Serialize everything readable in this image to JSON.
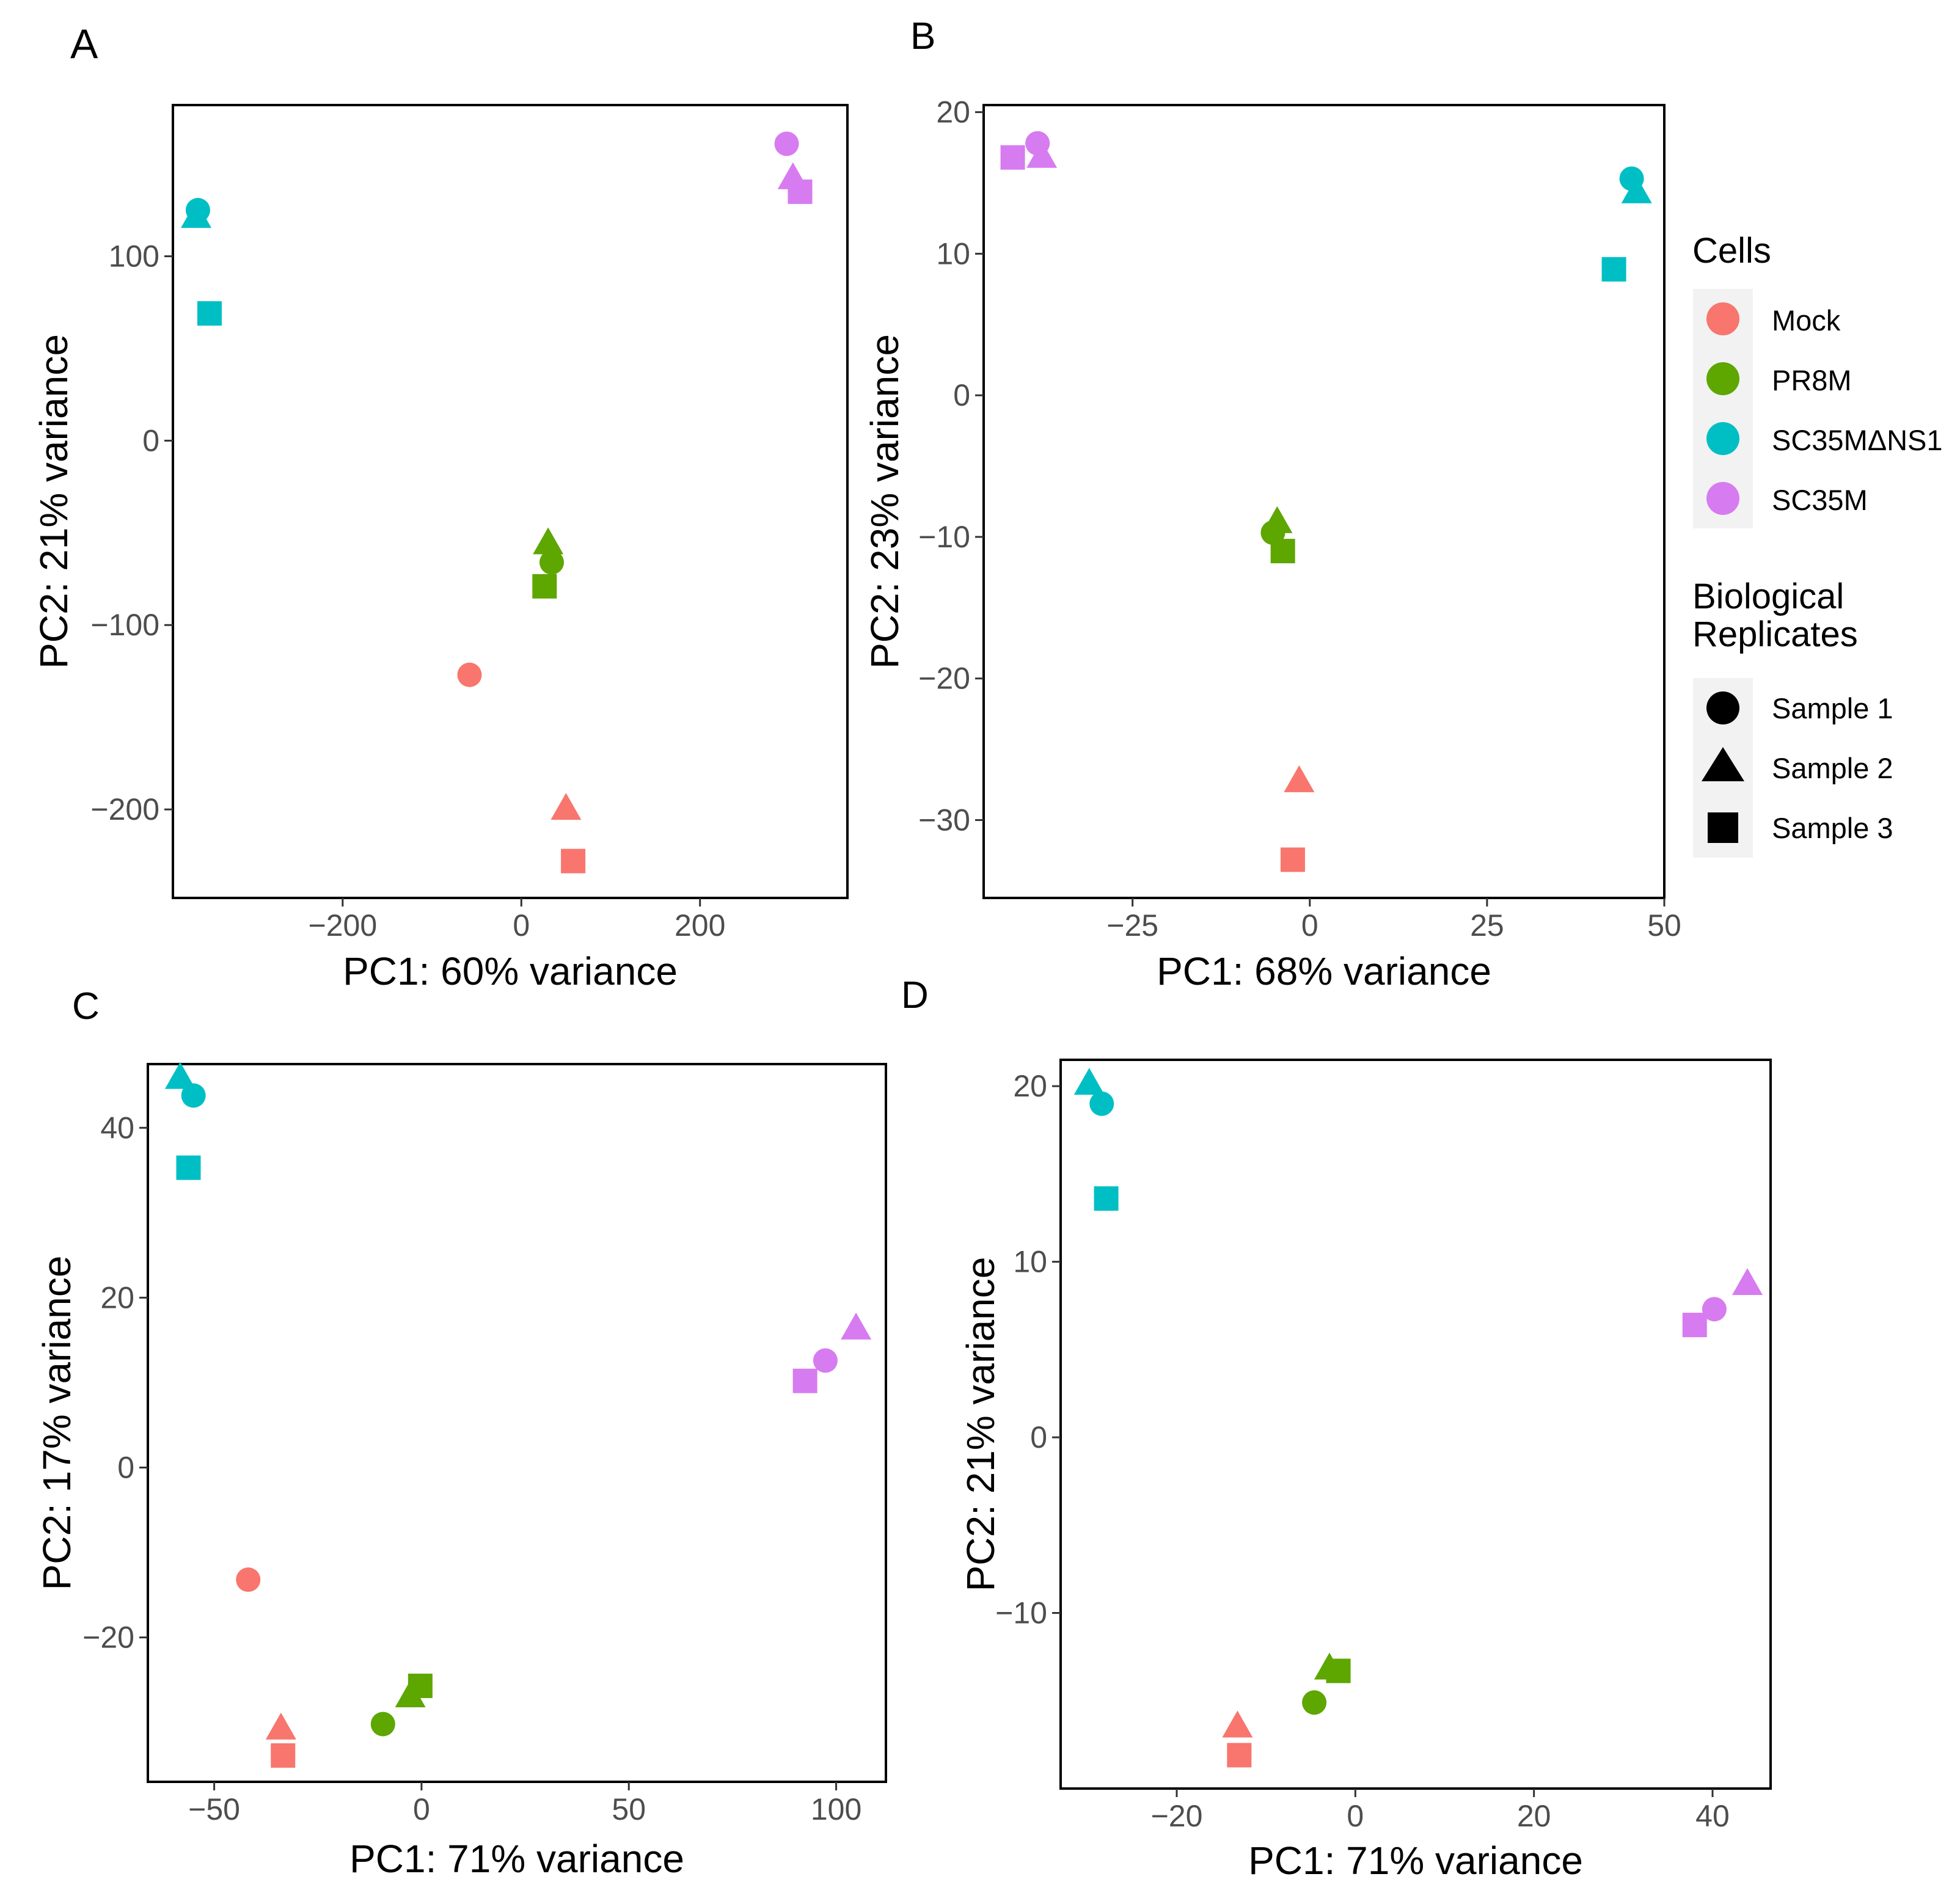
{
  "colors": {
    "Mock": "#F8766D",
    "PR8M": "#5EA600",
    "SC35MdNS1": "#00BFC4",
    "SC35M": "#D77BF0",
    "frame": "#000000",
    "tick_text": "#4D4D4D",
    "legend_key_bg": "#F2F2F2"
  },
  "legend": {
    "cells_title": "Cells",
    "cells": [
      {
        "key": "Mock",
        "label": "Mock"
      },
      {
        "key": "PR8M",
        "label": "PR8M"
      },
      {
        "key": "SC35MdNS1",
        "label": "SC35MΔNS1"
      },
      {
        "key": "SC35M",
        "label": "SC35M"
      }
    ],
    "rep_title_line1": "Biological",
    "rep_title_line2": "Replicates",
    "reps": [
      {
        "shape": "circle",
        "label": "Sample 1"
      },
      {
        "shape": "triangle",
        "label": "Sample 2"
      },
      {
        "shape": "square",
        "label": "Sample 3"
      }
    ]
  },
  "chart_data": [
    {
      "panel": "A",
      "type": "scatter",
      "xlabel": "PC1: 60% variance",
      "ylabel": "PC2: 21% variance",
      "xlim": [
        -390,
        365
      ],
      "ylim": [
        -248,
        182
      ],
      "xticks": [
        -200,
        0,
        200
      ],
      "yticks": [
        -200,
        -100,
        0,
        100
      ],
      "points": [
        {
          "cell": "SC35MdNS1",
          "rep": 1,
          "x": -362,
          "y": 125
        },
        {
          "cell": "SC35MdNS1",
          "rep": 2,
          "x": -364,
          "y": 121
        },
        {
          "cell": "SC35MdNS1",
          "rep": 3,
          "x": -349,
          "y": 69
        },
        {
          "cell": "SC35M",
          "rep": 1,
          "x": 297,
          "y": 161
        },
        {
          "cell": "SC35M",
          "rep": 2,
          "x": 304,
          "y": 142
        },
        {
          "cell": "SC35M",
          "rep": 3,
          "x": 312,
          "y": 135
        },
        {
          "cell": "PR8M",
          "rep": 1,
          "x": 34,
          "y": -66
        },
        {
          "cell": "PR8M",
          "rep": 2,
          "x": 30,
          "y": -56
        },
        {
          "cell": "PR8M",
          "rep": 3,
          "x": 26,
          "y": -79
        },
        {
          "cell": "Mock",
          "rep": 1,
          "x": -58,
          "y": -127
        },
        {
          "cell": "Mock",
          "rep": 2,
          "x": 50,
          "y": -200
        },
        {
          "cell": "Mock",
          "rep": 3,
          "x": 58,
          "y": -228
        }
      ]
    },
    {
      "panel": "B",
      "type": "scatter",
      "xlabel": "PC1: 68% variance",
      "ylabel": "PC2: 23% variance",
      "xlim": [
        -46,
        50
      ],
      "ylim": [
        -35.5,
        20.5
      ],
      "xticks": [
        -25,
        0,
        25,
        50
      ],
      "yticks": [
        -30,
        -20,
        -10,
        0,
        10,
        20
      ],
      "points": [
        {
          "cell": "SC35M",
          "rep": 1,
          "x": -38.4,
          "y": 17.8
        },
        {
          "cell": "SC35M",
          "rep": 2,
          "x": -37.8,
          "y": 16.8
        },
        {
          "cell": "SC35M",
          "rep": 3,
          "x": -41.9,
          "y": 16.8
        },
        {
          "cell": "SC35MdNS1",
          "rep": 1,
          "x": 45.4,
          "y": 15.3
        },
        {
          "cell": "SC35MdNS1",
          "rep": 2,
          "x": 46.1,
          "y": 14.3
        },
        {
          "cell": "SC35MdNS1",
          "rep": 3,
          "x": 42.9,
          "y": 8.9
        },
        {
          "cell": "PR8M",
          "rep": 1,
          "x": -5.2,
          "y": -9.7
        },
        {
          "cell": "PR8M",
          "rep": 2,
          "x": -4.6,
          "y": -9.0
        },
        {
          "cell": "PR8M",
          "rep": 3,
          "x": -3.8,
          "y": -11.0
        },
        {
          "cell": "Mock",
          "rep": 2,
          "x": -1.5,
          "y": -27.3
        },
        {
          "cell": "Mock",
          "rep": 3,
          "x": -2.4,
          "y": -32.8
        }
      ]
    },
    {
      "panel": "C",
      "type": "scatter",
      "xlabel": "PC1: 71% variance",
      "ylabel": "PC2: 17% variance",
      "xlim": [
        -66,
        112
      ],
      "ylim": [
        -37,
        47.5
      ],
      "xticks": [
        -50,
        0,
        50,
        100
      ],
      "yticks": [
        -20,
        0,
        20,
        40
      ],
      "points": [
        {
          "cell": "SC35MdNS1",
          "rep": 1,
          "x": -55.0,
          "y": 43.8
        },
        {
          "cell": "SC35MdNS1",
          "rep": 2,
          "x": -58.2,
          "y": 45.8
        },
        {
          "cell": "SC35MdNS1",
          "rep": 3,
          "x": -56.2,
          "y": 35.3
        },
        {
          "cell": "SC35M",
          "rep": 1,
          "x": 97.4,
          "y": 12.6
        },
        {
          "cell": "SC35M",
          "rep": 2,
          "x": 104.8,
          "y": 16.3
        },
        {
          "cell": "SC35M",
          "rep": 3,
          "x": 92.5,
          "y": 10.2
        },
        {
          "cell": "Mock",
          "rep": 1,
          "x": -41.8,
          "y": -13.2
        },
        {
          "cell": "Mock",
          "rep": 2,
          "x": -33.9,
          "y": -30.8
        },
        {
          "cell": "Mock",
          "rep": 3,
          "x": -33.4,
          "y": -33.9
        },
        {
          "cell": "PR8M",
          "rep": 1,
          "x": -9.3,
          "y": -30.2
        },
        {
          "cell": "PR8M",
          "rep": 2,
          "x": -2.7,
          "y": -27.0
        },
        {
          "cell": "PR8M",
          "rep": 3,
          "x": -0.3,
          "y": -25.7
        }
      ]
    },
    {
      "panel": "D",
      "type": "scatter",
      "xlabel": "PC1: 71% variance",
      "ylabel": "PC2: 21% variance",
      "xlim": [
        -33,
        46.5
      ],
      "ylim": [
        -20,
        21.5
      ],
      "xticks": [
        -20,
        0,
        20,
        40
      ],
      "yticks": [
        -10,
        0,
        10,
        20
      ],
      "points": [
        {
          "cell": "SC35MdNS1",
          "rep": 1,
          "x": -28.4,
          "y": 19.0
        },
        {
          "cell": "SC35MdNS1",
          "rep": 2,
          "x": -29.8,
          "y": 20.1
        },
        {
          "cell": "SC35MdNS1",
          "rep": 3,
          "x": -27.9,
          "y": 13.6
        },
        {
          "cell": "SC35M",
          "rep": 1,
          "x": 40.2,
          "y": 7.3
        },
        {
          "cell": "SC35M",
          "rep": 2,
          "x": 43.9,
          "y": 8.7
        },
        {
          "cell": "SC35M",
          "rep": 3,
          "x": 38.0,
          "y": 6.4
        },
        {
          "cell": "PR8M",
          "rep": 1,
          "x": -4.6,
          "y": -15.1
        },
        {
          "cell": "PR8M",
          "rep": 2,
          "x": -2.9,
          "y": -13.2
        },
        {
          "cell": "PR8M",
          "rep": 3,
          "x": -1.9,
          "y": -13.3
        },
        {
          "cell": "Mock",
          "rep": 2,
          "x": -13.2,
          "y": -16.5
        },
        {
          "cell": "Mock",
          "rep": 3,
          "x": -13.0,
          "y": -18.1
        }
      ]
    }
  ]
}
